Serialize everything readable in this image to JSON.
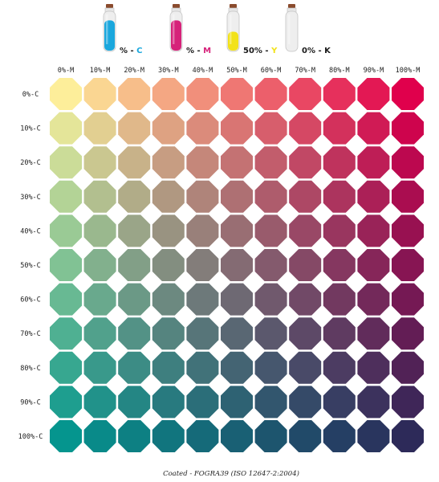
{
  "chart_data": {
    "type": "heatmap",
    "title": "",
    "legend": [
      {
        "name": "cyan-ink",
        "percent_text": "%",
        "sep": " - ",
        "letter": "C",
        "color": "#1aa7dd",
        "ink_level": 0.8
      },
      {
        "name": "magenta-ink",
        "percent_text": "%",
        "sep": " - ",
        "letter": "M",
        "color": "#d6227a",
        "ink_level": 0.8
      },
      {
        "name": "yellow-ink",
        "percent_text": "50%",
        "sep": " - ",
        "letter": "Y",
        "color": "#f2e21a",
        "ink_level": 0.5
      },
      {
        "name": "black-ink",
        "percent_text": "0%",
        "sep": " - ",
        "letter": "K",
        "color": "#cfcfcf",
        "ink_level": 0.0
      }
    ],
    "x_ticks": [
      "0%-M",
      "10%-M",
      "20%-M",
      "30%-M",
      "40%-M",
      "50%-M",
      "60%-M",
      "70%-M",
      "80%-M",
      "90%-M",
      "100%-M"
    ],
    "y_ticks": [
      "0%-C",
      "10%-C",
      "20%-C",
      "30%-C",
      "40%-C",
      "50%-C",
      "60%-C",
      "70%-C",
      "80%-C",
      "90%-C",
      "100%-C"
    ],
    "x_values": [
      0,
      10,
      20,
      30,
      40,
      50,
      60,
      70,
      80,
      90,
      100
    ],
    "y_values": [
      0,
      10,
      20,
      30,
      40,
      50,
      60,
      70,
      80,
      90,
      100
    ],
    "fixed": {
      "Y": 50,
      "K": 0
    },
    "corner_colors": {
      "c0_m0": "#fdee9a",
      "c0_m100": "#e0004c",
      "c100_m0": "#05958e",
      "c100_m100": "#2d2a59"
    },
    "footer": "Coated - FOGRA39 (ISO 12647-2:2004)",
    "grid": false
  },
  "colors": {
    "cyan": "#1aa7dd",
    "magenta": "#d6227a",
    "yellow": "#f2e21a",
    "bottle_cap": "#8a4b2d"
  }
}
